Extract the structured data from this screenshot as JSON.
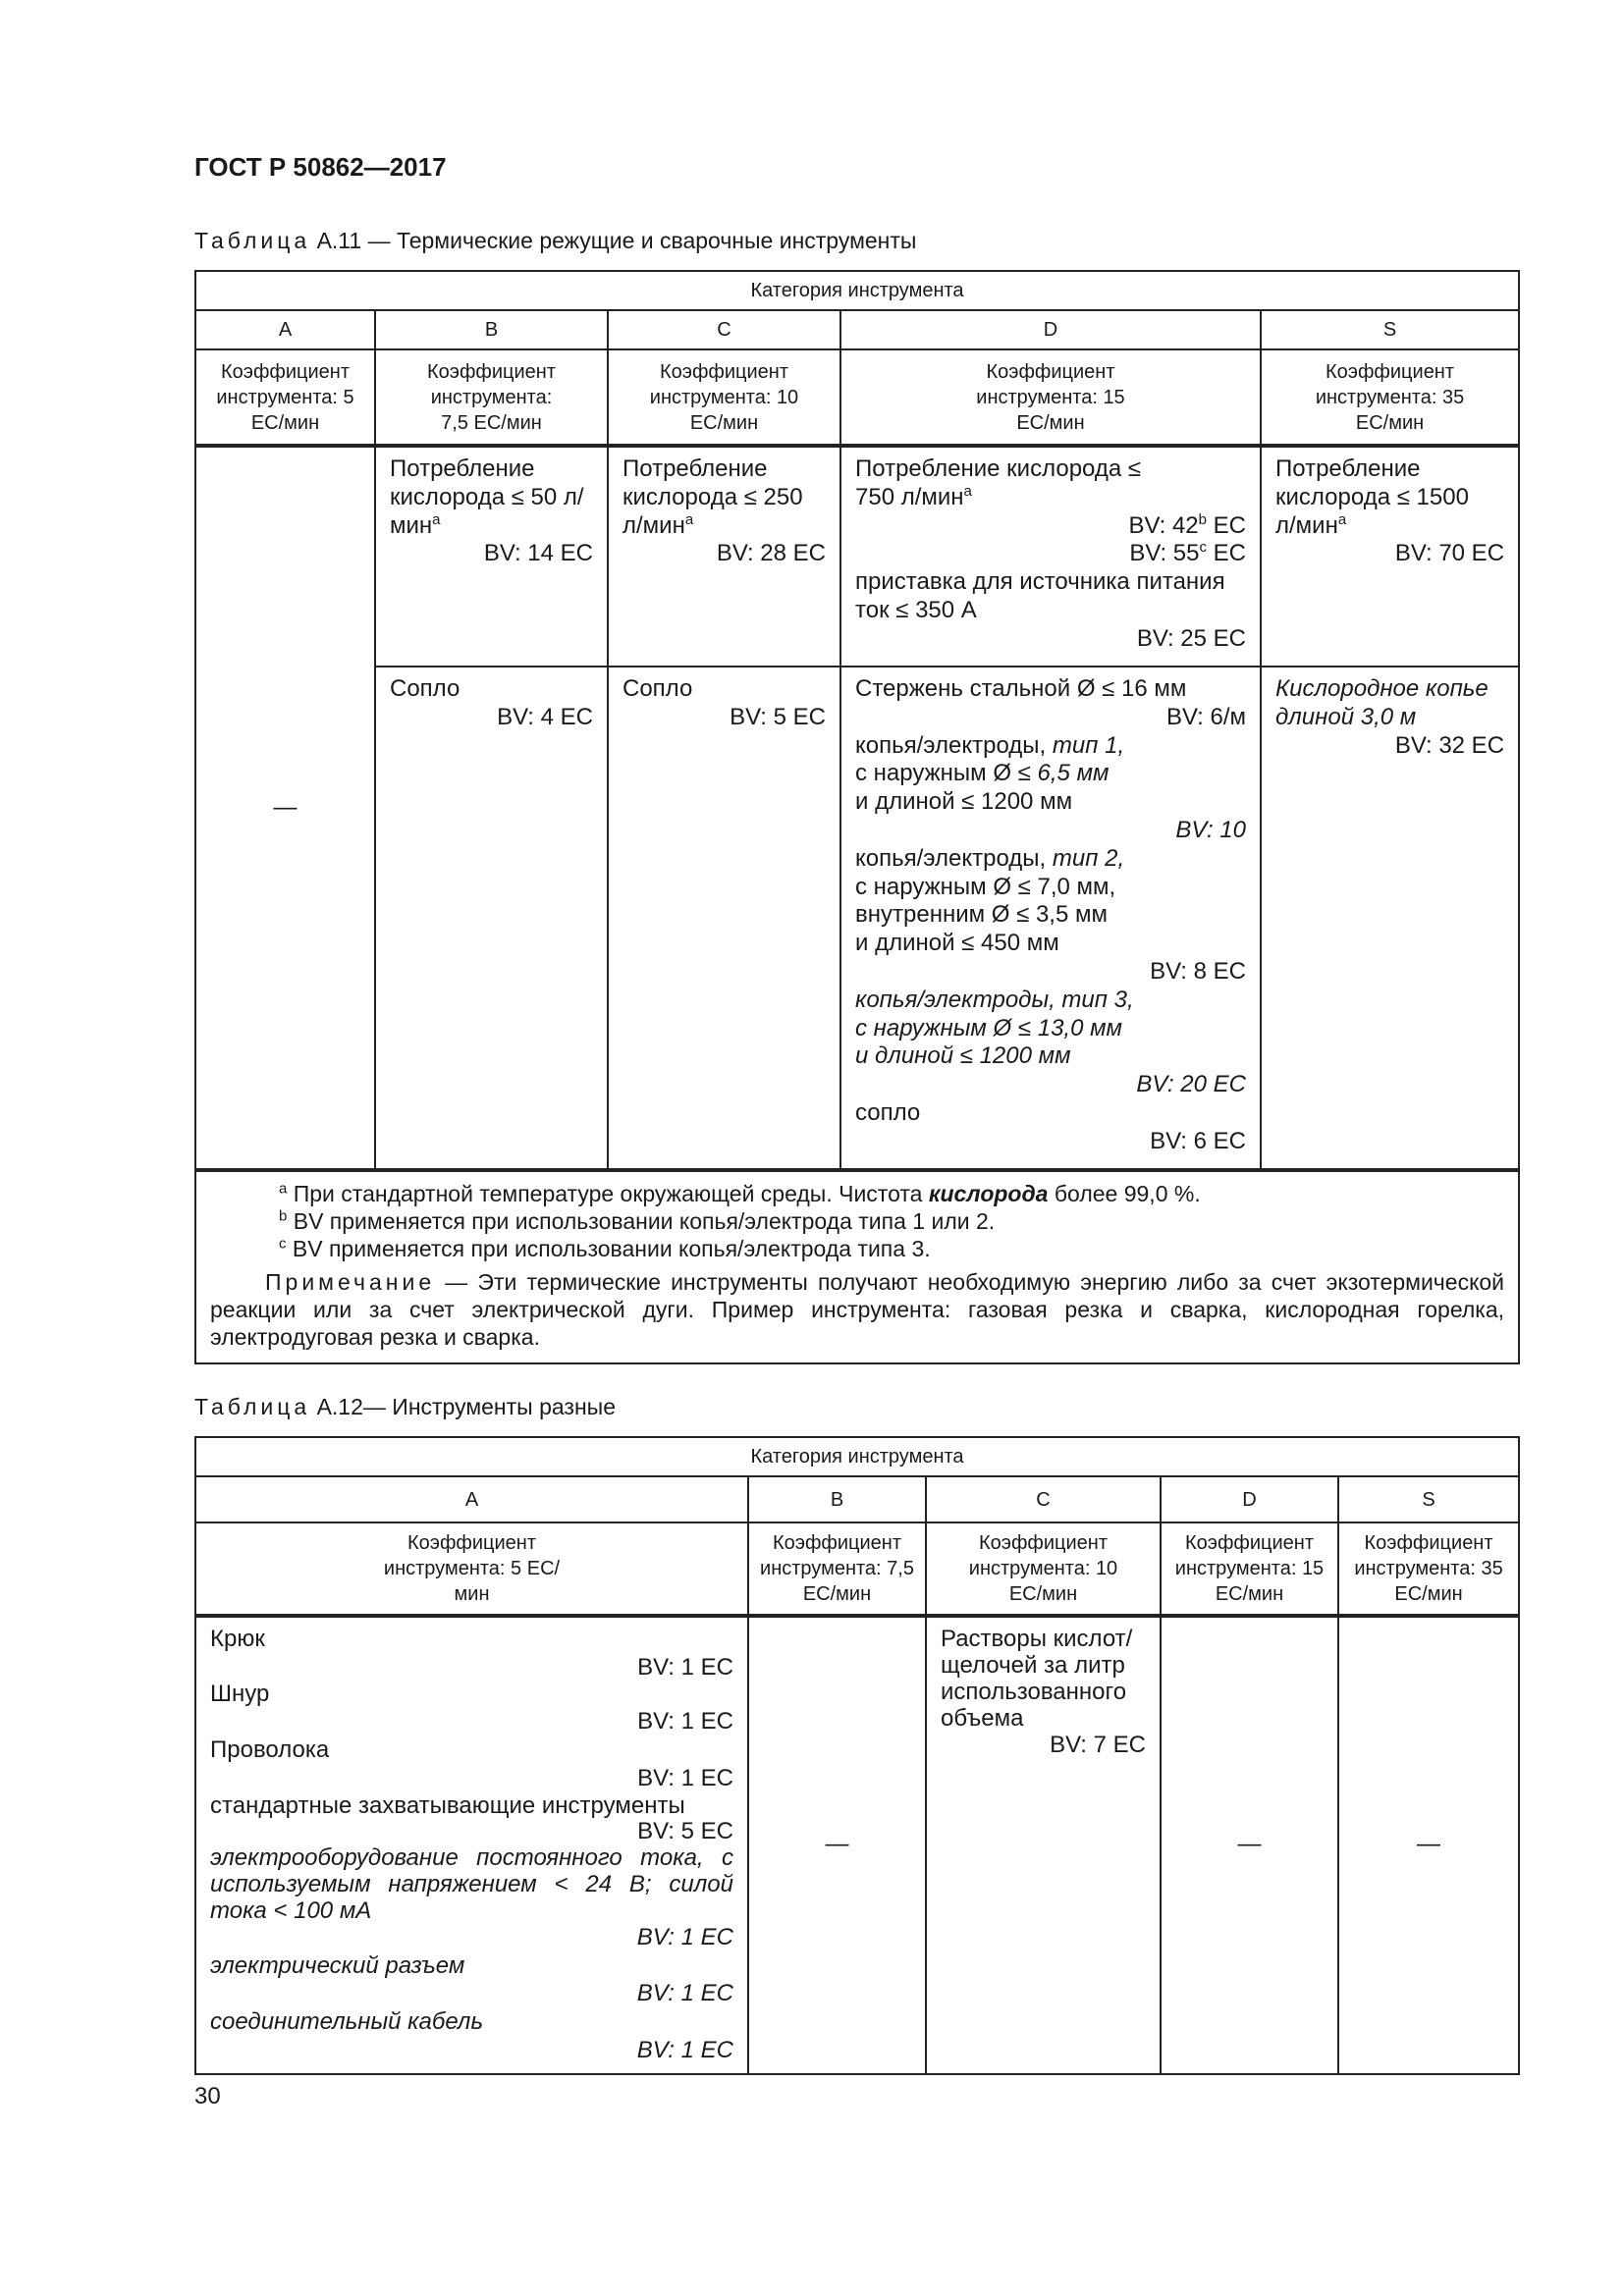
{
  "header": {
    "doc_title": "ГОСТ Р 50862—2017"
  },
  "table11": {
    "caption_prefix": "Таблица",
    "caption": " А.11 — Термические режущие и сварочные инструменты",
    "category_header": "Категория инструмента",
    "columns": [
      "A",
      "B",
      "C",
      "D",
      "S"
    ],
    "coef": [
      "Коэффициент инструмента: 5 ЕС/мин",
      "Коэффициент инструмента: 7,5 ЕС/мин",
      "Коэффициент инструмента: 10 ЕС/мин",
      "Коэффициент инструмента: 15 ЕС/мин",
      "Коэффициент инструмента: 35 ЕС/мин"
    ],
    "a_value": "—",
    "row1": {
      "b": {
        "text": "Потребление кислорода ≤ 50 л/мин",
        "sup": "a",
        "bv": "BV: 14 EC"
      },
      "c": {
        "text": "Потребление кислорода ≤ 250 л/мин",
        "sup": "a",
        "bv": "BV: 28 EC"
      },
      "d": {
        "text": "Потребление кислорода ≤ 750 л/мин",
        "sup": "a",
        "bv1": "BV: 42",
        "bv1_sup": "b",
        "bv1_unit": " EC",
        "bv2": "BV: 55",
        "bv2_sup": "c",
        "bv2_unit": " EC",
        "text2": "приставка для источника питания ток ≤ 350 А",
        "bv3": "BV: 25 EC"
      },
      "s": {
        "text": "Потребление кислорода ≤ 1500 л/мин",
        "sup": "a",
        "bv": "BV: 70 EC"
      }
    },
    "row2": {
      "b": {
        "text": "Сопло",
        "bv": "BV: 4 EC"
      },
      "c": {
        "text": "Сопло",
        "bv": "BV: 5 EC"
      },
      "d": {
        "t1": "Стержень стальной Ø ≤ 16 мм",
        "bv1": "BV: 6/м",
        "t2a": "копья/электроды, ",
        "t2b": "тип 1,",
        "t2c": "с наружным Ø ≤ ",
        "t2d": "6,5 мм",
        "t2e": "и длиной ≤ 1200 мм",
        "bv2": "BV: 10",
        "t3a": "копья/электроды, ",
        "t3b": "тип 2,",
        "t3c": "с наружным Ø ≤ 7,0 мм,",
        "t3d": "внутренним Ø ≤ 3,5 мм",
        "t3e": "и длиной ≤ 450 мм",
        "bv3": "BV: 8 EC",
        "t4a": "копья/электроды, тип 3,",
        "t4b": "с наружным Ø ≤ 13,0 мм",
        "t4c": "и длиной ≤ 1200 мм",
        "bv4": "BV: 20 EC",
        "t5": "сопло",
        "bv5": "BV: 6 EC"
      },
      "s": {
        "text": "Кислородное копье длиной 3,0 м",
        "bv": "BV: 32 EC"
      }
    },
    "notes": {
      "a_sup": "a",
      "a1": " При стандартной температуре окружающей среды. Чистота ",
      "a_bold": "кислорода",
      "a2": " более 99,0 %.",
      "b_sup": "b",
      "b": " BV применяется при использовании копья/электрода типа 1 или 2.",
      "c_sup": "c",
      "c": " BV применяется при использовании копья/электрода типа 3.",
      "note_label": "Примечание",
      "note": " — Эти термические инструменты получают необходимую энергию либо за счет экзотермической реакции или за счет электрической дуги. Пример инструмента: газовая резка и сварка, кислородная горелка, электродуговая резка и сварка."
    }
  },
  "table12": {
    "caption_prefix": "Таблица",
    "caption": " А.12— Инструменты разные",
    "category_header": "Категория инструмента",
    "columns": [
      "A",
      "B",
      "C",
      "D",
      "S"
    ],
    "coef": [
      "Коэффициент инструмента: 5 ЕС/мин",
      "Коэффициент инструмента: 7,5 ЕС/мин",
      "Коэффициент инструмента: 10 ЕС/мин",
      "Коэффициент инструмента: 15 ЕС/мин",
      "Коэффициент инструмента: 35 ЕС/мин"
    ],
    "a_items": [
      {
        "text": "Крюк",
        "bv": "BV: 1 EC"
      },
      {
        "text": "Шнур",
        "bv": "BV: 1 EC"
      },
      {
        "text": "Проволока",
        "bv": "BV: 1 EC"
      },
      {
        "text": "стандартные захватывающие инструменты",
        "bv": "BV: 5 EC"
      }
    ],
    "a_italic_items": [
      {
        "text": "электрооборудование постоянного тока, с используемым напряжением < 24 В; силой тока < 100 мА",
        "bv": "BV: 1 EC"
      },
      {
        "text": "электрический разъем",
        "bv": "BV: 1 EC"
      },
      {
        "text": "соединительный кабель",
        "bv": "BV: 1 EC"
      }
    ],
    "b_value": "—",
    "c": {
      "text": "Растворы кислот/ щелочей за литр использованного объема",
      "bv": "BV: 7 EC"
    },
    "d_value": "—",
    "s_value": "—"
  },
  "footer": {
    "page_number": "30"
  }
}
